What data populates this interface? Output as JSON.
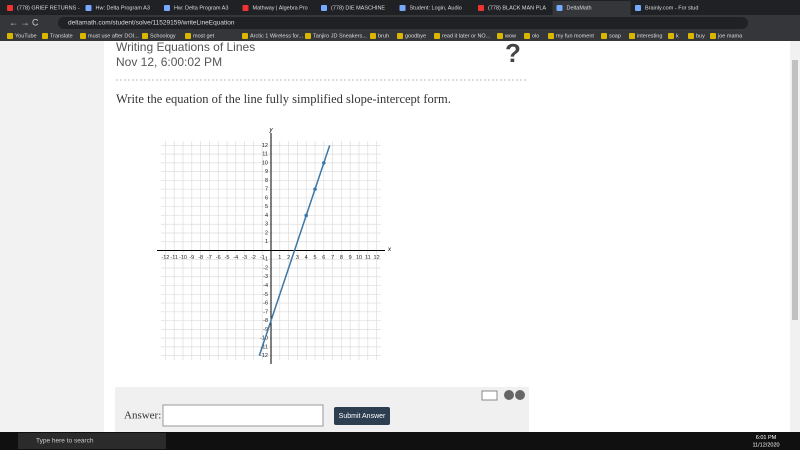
{
  "browser": {
    "tabs": [
      "(778) GRIEF RETURNS -",
      "Hw: Delta Program A3",
      "Hw: Delta Program A3",
      "Mathway | Algebra Pro",
      "(778) DIE MASCHINE",
      "Student: Login, Audio",
      "(778) BLACK MAN PLA",
      "DeltaMath",
      "Brainly.com - For stud"
    ],
    "url": "deltamath.com/student/solve/11529159/writeLineEquation",
    "bookmarks": [
      "YouTube",
      "Translate",
      "must use after DOI...",
      "Schoology",
      "most get",
      "Arctic 1 Wireless for...",
      "Tanjiro JD Sneakers...",
      "bruh",
      "goodbye",
      "read it later or NO...",
      "wow",
      "olo",
      "my fun moment",
      "soap",
      "interesting",
      "k",
      "buy",
      "joe mama"
    ]
  },
  "page": {
    "heading": "Writing Equations of Lines",
    "date": "Nov 12, 6:00:02 PM",
    "help_icon": "?",
    "prompt": "Write the equation of the line fully simplified slope-intercept form.",
    "answer_label": "Answer:",
    "submit": "Submit Answer"
  },
  "graph": {
    "xlabel": "x",
    "ylabel": "y",
    "xlim": [
      -12.5,
      12.5
    ],
    "ylim": [
      -12.5,
      12.5
    ],
    "xticks": [
      -12,
      -11,
      -10,
      -9,
      -8,
      -7,
      -6,
      -5,
      -4,
      -3,
      -2,
      -1,
      1,
      2,
      3,
      4,
      5,
      6,
      7,
      8,
      9,
      10,
      11,
      12
    ],
    "yticks": [
      -12,
      -11,
      -10,
      -9,
      -8,
      -7,
      -6,
      -5,
      -4,
      -3,
      -2,
      -1,
      1,
      2,
      3,
      4,
      5,
      6,
      7,
      8,
      9,
      10,
      11,
      12
    ],
    "line": {
      "x": [
        -1.33,
        6.67
      ],
      "y": [
        -12,
        12
      ]
    },
    "points": {
      "x": [
        4,
        5,
        6
      ],
      "y": [
        4,
        7,
        10
      ]
    }
  },
  "taskbar": {
    "search": "Type here to search",
    "time": "6:01 PM",
    "date": "11/12/2020"
  }
}
